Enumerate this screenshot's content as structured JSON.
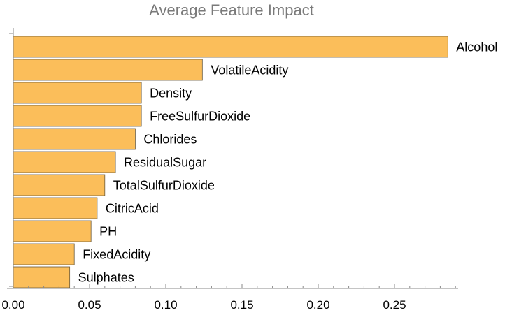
{
  "chart_data": {
    "type": "bar",
    "orientation": "horizontal",
    "title": "Average Feature Impact",
    "xlabel": "",
    "ylabel": "",
    "xlim": [
      0,
      0.29
    ],
    "xticks": [
      "0.00",
      "0.05",
      "0.10",
      "0.15",
      "0.20",
      "0.25"
    ],
    "grid": false,
    "bar_color": "#fbbe5a",
    "bar_edge_color": "#6b5a3a",
    "categories": [
      "Alcohol",
      "VolatileAcidity",
      "Density",
      "FreeSulfurDioxide",
      "Chlorides",
      "ResidualSugar",
      "TotalSulfurDioxide",
      "CitricAcid",
      "PH",
      "FixedAcidity",
      "Sulphates"
    ],
    "values": [
      0.285,
      0.124,
      0.084,
      0.084,
      0.08,
      0.067,
      0.06,
      0.055,
      0.051,
      0.04,
      0.037
    ]
  }
}
